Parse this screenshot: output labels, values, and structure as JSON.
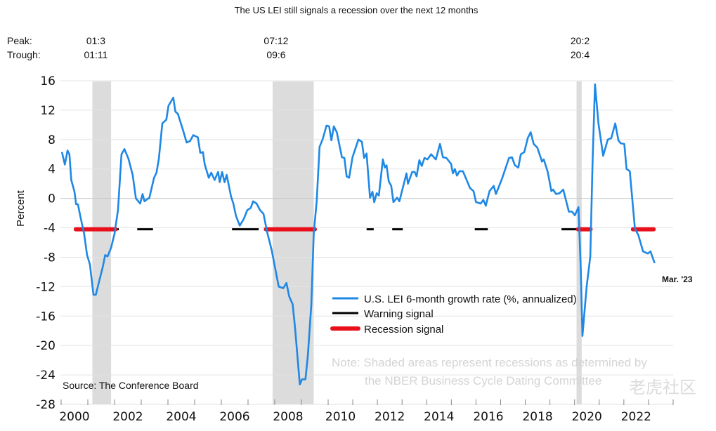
{
  "chart_data": {
    "type": "line",
    "title": "The US LEI still signals a recession over the next 12 months",
    "ylabel": "Percent",
    "xlabel": "",
    "ylim": [
      -28,
      16
    ],
    "yticks": [
      16,
      12,
      8,
      4,
      0,
      -4,
      -8,
      -12,
      -16,
      -20,
      -24,
      -28
    ],
    "xlim": [
      2000,
      2024
    ],
    "xtick_labels": [
      "2000",
      "2002",
      "2004",
      "2006",
      "2008",
      "2010",
      "2012",
      "2014",
      "2016",
      "2018",
      "2020",
      "2022"
    ],
    "grid": "horizontal",
    "legend_placement": "bottom-center",
    "colors": {
      "lei": "#1e88e5",
      "warning": "#000000",
      "recession": "#e8101a",
      "shade": "#dcdcdc",
      "grid": "#e3e3e3"
    },
    "peak_trough": {
      "peak_label": "Peak:",
      "trough_label": "Trough:",
      "recessions": [
        {
          "peak": "01:3",
          "trough": "01:11",
          "start": 2001.17,
          "end": 2001.87
        },
        {
          "peak": "07:12",
          "trough": "09:6",
          "start": 2007.92,
          "end": 2009.46
        },
        {
          "peak": "20:2",
          "trough": "20:4",
          "start": 2020.08,
          "end": 2020.29
        }
      ]
    },
    "series": [
      {
        "name": "U.S. LEI 6-month growth rate (%, annualized)",
        "points": [
          [
            2000.03,
            6.3
          ],
          [
            2000.14,
            4.6
          ],
          [
            2000.24,
            6.5
          ],
          [
            2000.31,
            6.0
          ],
          [
            2000.38,
            2.5
          ],
          [
            2000.5,
            0.9
          ],
          [
            2000.56,
            -0.8
          ],
          [
            2000.63,
            -0.8
          ],
          [
            2000.73,
            -2.6
          ],
          [
            2000.86,
            -4.8
          ],
          [
            2000.97,
            -7.7
          ],
          [
            2001.08,
            -9.0
          ],
          [
            2001.21,
            -13.1
          ],
          [
            2001.3,
            -13.1
          ],
          [
            2001.43,
            -11.2
          ],
          [
            2001.56,
            -9.3
          ],
          [
            2001.65,
            -7.7
          ],
          [
            2001.74,
            -7.9
          ],
          [
            2001.87,
            -6.7
          ],
          [
            2002.0,
            -4.8
          ],
          [
            2002.13,
            -1.6
          ],
          [
            2002.26,
            6.0
          ],
          [
            2002.37,
            6.7
          ],
          [
            2002.52,
            5.4
          ],
          [
            2002.68,
            3.2
          ],
          [
            2002.8,
            0
          ],
          [
            2002.96,
            -0.7
          ],
          [
            2003.05,
            0.6
          ],
          [
            2003.12,
            -0.4
          ],
          [
            2003.26,
            0
          ],
          [
            2003.3,
            0
          ],
          [
            2003.48,
            2.8
          ],
          [
            2003.57,
            3.5
          ],
          [
            2003.66,
            5.4
          ],
          [
            2003.79,
            10.2
          ],
          [
            2003.94,
            10.7
          ],
          [
            2004.02,
            12.6
          ],
          [
            2004.2,
            13.7
          ],
          [
            2004.28,
            11.8
          ],
          [
            2004.37,
            11.5
          ],
          [
            2004.57,
            9.2
          ],
          [
            2004.7,
            7.6
          ],
          [
            2004.83,
            7.8
          ],
          [
            2004.95,
            8.6
          ],
          [
            2005.12,
            8.3
          ],
          [
            2005.21,
            6.2
          ],
          [
            2005.31,
            6.3
          ],
          [
            2005.38,
            4.6
          ],
          [
            2005.53,
            2.8
          ],
          [
            2005.62,
            3.5
          ],
          [
            2005.75,
            2.5
          ],
          [
            2005.88,
            3.6
          ],
          [
            2005.94,
            2.2
          ],
          [
            2006.03,
            3.6
          ],
          [
            2006.12,
            2.2
          ],
          [
            2006.2,
            3.2
          ],
          [
            2006.36,
            0.3
          ],
          [
            2006.45,
            -0.7
          ],
          [
            2006.55,
            -2.4
          ],
          [
            2006.69,
            -3.7
          ],
          [
            2006.84,
            -2.8
          ],
          [
            2006.97,
            -1.6
          ],
          [
            2007.1,
            -1.3
          ],
          [
            2007.19,
            -0.4
          ],
          [
            2007.32,
            -0.7
          ],
          [
            2007.45,
            -1.6
          ],
          [
            2007.58,
            -2.1
          ],
          [
            2007.71,
            -4.5
          ],
          [
            2007.89,
            -7.1
          ],
          [
            2008.02,
            -9.6
          ],
          [
            2008.15,
            -12.0
          ],
          [
            2008.32,
            -12.2
          ],
          [
            2008.44,
            -11.5
          ],
          [
            2008.54,
            -13.3
          ],
          [
            2008.67,
            -14.4
          ],
          [
            2008.76,
            -17.6
          ],
          [
            2008.94,
            -25.3
          ],
          [
            2009.02,
            -24.6
          ],
          [
            2009.15,
            -24.6
          ],
          [
            2009.24,
            -21.4
          ],
          [
            2009.37,
            -14.4
          ],
          [
            2009.46,
            -4.8
          ],
          [
            2009.57,
            -0.4
          ],
          [
            2009.68,
            7.0
          ],
          [
            2009.8,
            8.1
          ],
          [
            2009.94,
            9.9
          ],
          [
            2010.04,
            9.8
          ],
          [
            2010.13,
            7.9
          ],
          [
            2010.23,
            9.8
          ],
          [
            2010.35,
            9.0
          ],
          [
            2010.56,
            5.6
          ],
          [
            2010.66,
            5.5
          ],
          [
            2010.75,
            3.0
          ],
          [
            2010.85,
            2.8
          ],
          [
            2010.99,
            5.6
          ],
          [
            2011.23,
            8.0
          ],
          [
            2011.37,
            7.7
          ],
          [
            2011.46,
            5.5
          ],
          [
            2011.56,
            6.1
          ],
          [
            2011.7,
            0.1
          ],
          [
            2011.8,
            0.9
          ],
          [
            2011.87,
            -0.5
          ],
          [
            2011.97,
            0.7
          ],
          [
            2012.06,
            0.4
          ],
          [
            2012.22,
            5.3
          ],
          [
            2012.3,
            4.2
          ],
          [
            2012.37,
            4.5
          ],
          [
            2012.46,
            2.3
          ],
          [
            2012.56,
            1.7
          ],
          [
            2012.65,
            -0.5
          ],
          [
            2012.8,
            0.1
          ],
          [
            2012.89,
            -0.4
          ],
          [
            2013.18,
            3.4
          ],
          [
            2013.24,
            2.0
          ],
          [
            2013.41,
            3.6
          ],
          [
            2013.51,
            3.6
          ],
          [
            2013.59,
            3.0
          ],
          [
            2013.7,
            5.2
          ],
          [
            2013.8,
            4.4
          ],
          [
            2013.91,
            5.5
          ],
          [
            2014.03,
            5.3
          ],
          [
            2014.18,
            6.0
          ],
          [
            2014.37,
            5.3
          ],
          [
            2014.54,
            7.4
          ],
          [
            2014.66,
            5.6
          ],
          [
            2014.8,
            5.5
          ],
          [
            2014.99,
            4.7
          ],
          [
            2015.06,
            3.4
          ],
          [
            2015.14,
            4.0
          ],
          [
            2015.23,
            3.1
          ],
          [
            2015.33,
            3.7
          ],
          [
            2015.47,
            3.7
          ],
          [
            2015.76,
            1.4
          ],
          [
            2015.9,
            1.0
          ],
          [
            2016.0,
            -0.5
          ],
          [
            2016.19,
            -0.7
          ],
          [
            2016.3,
            -0.2
          ],
          [
            2016.4,
            -1.0
          ],
          [
            2016.55,
            1.0
          ],
          [
            2016.72,
            1.7
          ],
          [
            2016.81,
            0.6
          ],
          [
            2017.05,
            2.6
          ],
          [
            2017.34,
            5.5
          ],
          [
            2017.46,
            5.6
          ],
          [
            2017.58,
            4.5
          ],
          [
            2017.72,
            4.2
          ],
          [
            2017.82,
            6.0
          ],
          [
            2017.96,
            6.3
          ],
          [
            2018.1,
            8.2
          ],
          [
            2018.22,
            9.0
          ],
          [
            2018.34,
            7.4
          ],
          [
            2018.49,
            6.9
          ],
          [
            2018.68,
            5.0
          ],
          [
            2018.75,
            5.3
          ],
          [
            2018.91,
            3.6
          ],
          [
            2019.06,
            1.0
          ],
          [
            2019.13,
            1.2
          ],
          [
            2019.25,
            0.6
          ],
          [
            2019.39,
            0.7
          ],
          [
            2019.54,
            1.2
          ],
          [
            2019.77,
            -1.8
          ],
          [
            2019.9,
            -1.8
          ],
          [
            2020.01,
            -2.3
          ],
          [
            2020.16,
            -1.2
          ],
          [
            2020.25,
            -9.5
          ],
          [
            2020.32,
            -18.7
          ],
          [
            2020.49,
            -12.0
          ],
          [
            2020.64,
            -7.9
          ],
          [
            2020.73,
            4.8
          ],
          [
            2020.83,
            15.5
          ],
          [
            2020.97,
            10.2
          ],
          [
            2021.16,
            5.8
          ],
          [
            2021.35,
            8.0
          ],
          [
            2021.49,
            8.2
          ],
          [
            2021.65,
            10.2
          ],
          [
            2021.78,
            7.9
          ],
          [
            2021.87,
            7.5
          ],
          [
            2022.02,
            7.4
          ],
          [
            2022.11,
            4.0
          ],
          [
            2022.24,
            3.7
          ],
          [
            2022.45,
            -4.1
          ],
          [
            2022.59,
            -5.0
          ],
          [
            2022.78,
            -7.2
          ],
          [
            2022.97,
            -7.5
          ],
          [
            2023.08,
            -7.2
          ],
          [
            2023.25,
            -8.8
          ]
        ]
      }
    ],
    "signal_level": -4.2,
    "warning_signals": [
      [
        2000.5,
        2002.16
      ],
      [
        2002.85,
        2003.44
      ],
      [
        2006.4,
        2007.4
      ],
      [
        2011.56,
        2011.85
      ],
      [
        2012.6,
        2013.03
      ],
      [
        2015.95,
        2016.48
      ],
      [
        2019.47,
        2020.14
      ]
    ],
    "recession_signals": [
      [
        2000.55,
        2002.04
      ],
      [
        2007.67,
        2009.5
      ],
      [
        2020.14,
        2020.65
      ],
      [
        2022.37,
        2023.21
      ]
    ],
    "legend": [
      "U.S. LEI 6-month growth rate (%, annualized)",
      "Warning signal",
      "Recession signal"
    ],
    "annotations": {
      "last_point": "Mar. '23",
      "source": "Source: The Conference Board",
      "note_line1": "Note: Shaded areas represent recessions as determined by",
      "note_line2": "the NBER Business Cycle Dating Committee"
    },
    "watermark": "老虎社区"
  }
}
